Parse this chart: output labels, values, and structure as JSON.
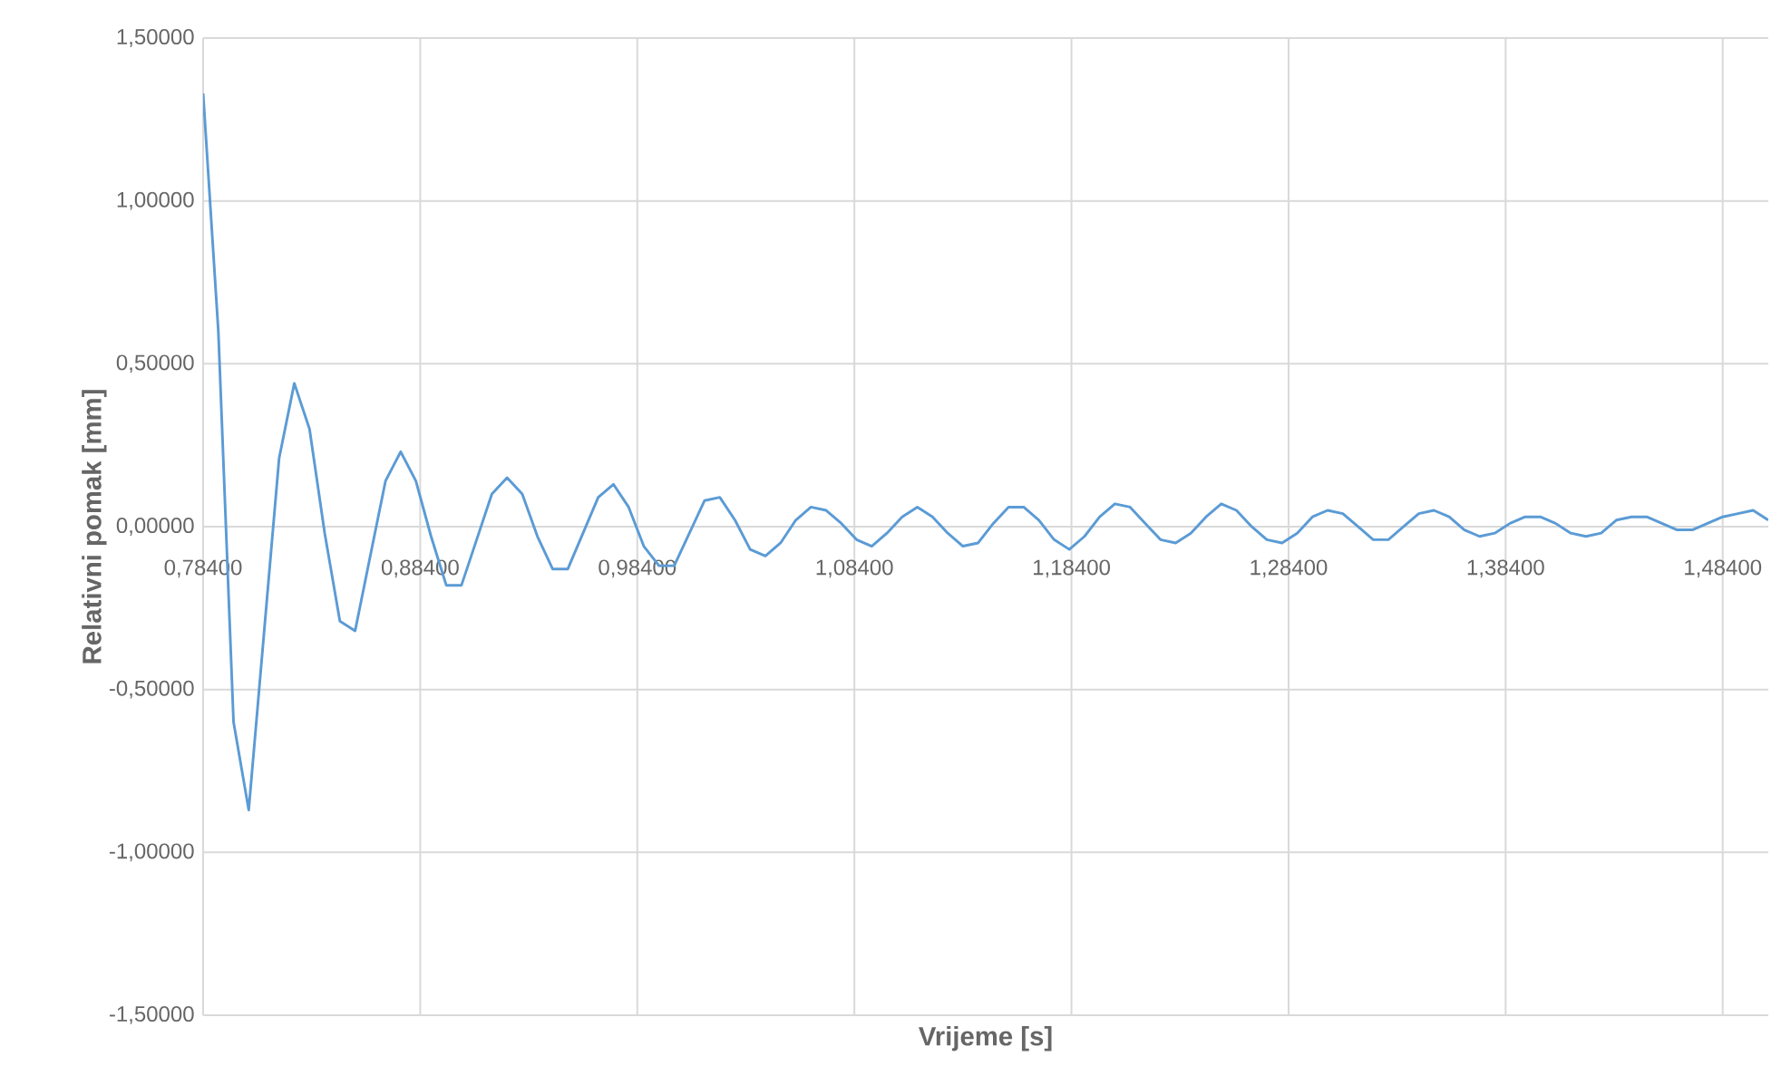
{
  "chart_data": {
    "type": "line",
    "xlabel": "Vrijeme [s]",
    "ylabel": "Relativni pomak [mm]",
    "x": [
      0.784,
      0.791,
      0.798,
      0.805,
      0.812,
      0.819,
      0.826,
      0.833,
      0.84,
      0.847,
      0.854,
      0.861,
      0.868,
      0.875,
      0.882,
      0.889,
      0.896,
      0.903,
      0.91,
      0.917,
      0.924,
      0.931,
      0.938,
      0.945,
      0.952,
      0.959,
      0.966,
      0.973,
      0.98,
      0.987,
      0.994,
      1.001,
      1.008,
      1.015,
      1.022,
      1.029,
      1.036,
      1.043,
      1.05,
      1.057,
      1.064,
      1.071,
      1.078,
      1.085,
      1.092,
      1.099,
      1.106,
      1.113,
      1.12,
      1.127,
      1.134,
      1.141,
      1.148,
      1.155,
      1.162,
      1.169,
      1.176,
      1.183,
      1.19,
      1.197,
      1.204,
      1.211,
      1.218,
      1.225,
      1.232,
      1.239,
      1.246,
      1.253,
      1.26,
      1.267,
      1.274,
      1.281,
      1.288,
      1.295,
      1.302,
      1.309,
      1.316,
      1.323,
      1.33,
      1.337,
      1.344,
      1.351,
      1.358,
      1.365,
      1.372,
      1.379,
      1.386,
      1.393,
      1.4,
      1.407,
      1.414,
      1.421,
      1.428,
      1.435,
      1.442,
      1.449,
      1.456,
      1.463,
      1.47,
      1.477,
      1.484,
      1.491,
      1.498,
      1.505
    ],
    "series": [
      {
        "color": "#5b9bd5",
        "values": [
          1.33,
          0.6,
          -0.6,
          -0.87,
          -0.33,
          0.21,
          0.44,
          0.3,
          -0.02,
          -0.29,
          -0.32,
          -0.09,
          0.14,
          0.23,
          0.14,
          -0.03,
          -0.18,
          -0.18,
          -0.04,
          0.1,
          0.15,
          0.1,
          -0.03,
          -0.13,
          -0.13,
          -0.02,
          0.09,
          0.13,
          0.06,
          -0.06,
          -0.12,
          -0.12,
          -0.02,
          0.08,
          0.09,
          0.02,
          -0.07,
          -0.09,
          -0.05,
          0.02,
          0.06,
          0.05,
          0.01,
          -0.04,
          -0.06,
          -0.02,
          0.03,
          0.06,
          0.03,
          -0.02,
          -0.06,
          -0.05,
          0.01,
          0.06,
          0.06,
          0.02,
          -0.04,
          -0.07,
          -0.03,
          0.03,
          0.07,
          0.06,
          0.01,
          -0.04,
          -0.05,
          -0.02,
          0.03,
          0.07,
          0.05,
          0,
          -0.04,
          -0.05,
          -0.02,
          0.03,
          0.05,
          0.04,
          0,
          -0.04,
          -0.04,
          0,
          0.04,
          0.05,
          0.03,
          -0.01,
          -0.03,
          -0.02,
          0.01,
          0.03,
          0.03,
          0.01,
          -0.02,
          -0.03,
          -0.02,
          0.02,
          0.03,
          0.03,
          0.01,
          -0.01,
          -0.01,
          0.01,
          0.03,
          0.04,
          0.05,
          0.02
        ]
      }
    ],
    "xlim": [
      0.784,
      1.505
    ],
    "xticks": [
      {
        "value": 0.784,
        "label": "0,78400"
      },
      {
        "value": 0.884,
        "label": "0,88400"
      },
      {
        "value": 0.984,
        "label": "0,98400"
      },
      {
        "value": 1.084,
        "label": "1,08400"
      },
      {
        "value": 1.184,
        "label": "1,18400"
      },
      {
        "value": 1.284,
        "label": "1,28400"
      },
      {
        "value": 1.384,
        "label": "1,38400"
      },
      {
        "value": 1.484,
        "label": "1,48400"
      }
    ],
    "ylim": [
      -1.5,
      1.5
    ],
    "yticks": [
      {
        "value": -1.5,
        "label": "-1,50000"
      },
      {
        "value": -1.0,
        "label": "-1,00000"
      },
      {
        "value": -0.5,
        "label": "-0,50000"
      },
      {
        "value": 0,
        "label": "0,00000"
      },
      {
        "value": 0.5,
        "label": "0,50000"
      },
      {
        "value": 1.0,
        "label": "1,00000"
      },
      {
        "value": 1.5,
        "label": "1,50000"
      }
    ],
    "grid": true,
    "marker": "none",
    "line_style": "solid"
  }
}
